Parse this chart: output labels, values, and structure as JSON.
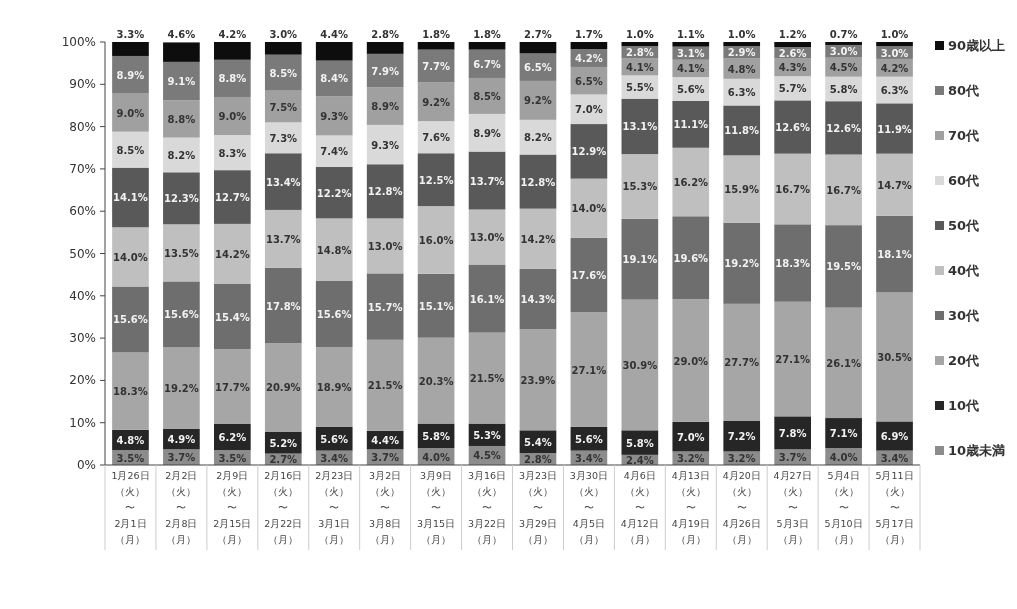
{
  "chart_data": {
    "type": "bar",
    "stacked": true,
    "legend": "right",
    "grid": false,
    "categories": [
      "1月26日（火）〜2月1日（月）",
      "2月2日（火）〜2月8日（月）",
      "2月9日（火）〜2月15日（月）",
      "2月16日（火）〜2月22日（月）",
      "2月23日（火）〜3月1日（月）",
      "3月2日（火）〜3月8日（月）",
      "3月9日（火）〜3月15日（月）",
      "3月16日（火）〜3月22日（月）",
      "3月23日（火）〜3月29日（月）",
      "3月30日（火）〜4月5日（月）",
      "4月6日（火）〜4月12日（月）",
      "4月13日（火）〜4月19日（月）",
      "4月20日（火）〜4月26日（月）",
      "4月27日（火）〜5月3日（月）",
      "5月4日（火）〜5月10日（月）",
      "5月11日（火）〜5月17日（月）"
    ],
    "ylim": [
      0,
      100
    ],
    "yticks": [
      {
        "value": 0,
        "label": "0%"
      },
      {
        "value": 10,
        "label": "10%"
      },
      {
        "value": 20,
        "label": "20%"
      },
      {
        "value": 30,
        "label": "30%"
      },
      {
        "value": 40,
        "label": "40%"
      },
      {
        "value": 50,
        "label": "50%"
      },
      {
        "value": 60,
        "label": "60%"
      },
      {
        "value": 70,
        "label": "70%"
      },
      {
        "value": 80,
        "label": "80%"
      },
      {
        "value": 90,
        "label": "90%"
      },
      {
        "value": 100,
        "label": "100%"
      }
    ],
    "series": [
      {
        "name": "10歳未満",
        "color": "#8c8c8c",
        "values": [
          3.5,
          3.7,
          3.5,
          2.7,
          3.4,
          3.7,
          4.0,
          4.5,
          2.8,
          3.4,
          2.4,
          3.2,
          3.2,
          3.7,
          4.0,
          3.4
        ],
        "value_labels": [
          "3.5%",
          "3.7%",
          "3.5%",
          "2.7%",
          "3.4%",
          "3.7%",
          "4.0%",
          "4.5%",
          "2.8%",
          "3.4%",
          "2.4%",
          "3.2%",
          "3.2%",
          "3.7%",
          "4.0%",
          "3.4%"
        ]
      },
      {
        "name": "10代",
        "color": "#262626",
        "values": [
          4.8,
          4.9,
          6.2,
          5.2,
          5.6,
          4.4,
          5.8,
          5.3,
          5.4,
          5.6,
          5.8,
          7.0,
          7.2,
          7.8,
          7.1,
          6.9
        ],
        "value_labels": [
          "4.8%",
          "4.9%",
          "6.2%",
          "5.2%",
          "5.6%",
          "4.4%",
          "5.8%",
          "5.3%",
          "5.4%",
          "5.6%",
          "5.8%",
          "7.0%",
          "7.2%",
          "7.8%",
          "7.1%",
          "6.9%"
        ]
      },
      {
        "name": "20代",
        "color": "#a6a6a6",
        "values": [
          18.3,
          19.2,
          17.7,
          20.9,
          18.9,
          21.5,
          20.3,
          21.5,
          23.9,
          27.1,
          30.9,
          29.0,
          27.7,
          27.1,
          26.1,
          30.5
        ],
        "value_labels": [
          "18.3%",
          "19.2%",
          "17.7%",
          "20.9%",
          "18.9%",
          "21.5%",
          "20.3%",
          "21.5%",
          "23.9%",
          "27.1%",
          "30.9%",
          "29.0%",
          "27.7%",
          "27.1%",
          "26.1%",
          "30.5%"
        ]
      },
      {
        "name": "30代",
        "color": "#6e6e6e",
        "values": [
          15.6,
          15.6,
          15.4,
          17.8,
          15.6,
          15.7,
          15.1,
          16.1,
          14.3,
          17.6,
          19.1,
          19.6,
          19.2,
          18.3,
          19.5,
          18.1
        ],
        "value_labels": [
          "15.6%",
          "15.6%",
          "15.4%",
          "17.8%",
          "15.6%",
          "15.7%",
          "15.1%",
          "16.1%",
          "14.3%",
          "17.6%",
          "19.1%",
          "19.6%",
          "19.2%",
          "18.3%",
          "19.5%",
          "18.1%"
        ]
      },
      {
        "name": "40代",
        "color": "#bfbfbf",
        "values": [
          14.0,
          13.5,
          14.2,
          13.7,
          14.8,
          13.0,
          16.0,
          13.0,
          14.2,
          14.0,
          15.3,
          16.2,
          15.9,
          16.7,
          16.7,
          14.7
        ],
        "value_labels": [
          "14.0%",
          "13.5%",
          "14.2%",
          "13.7%",
          "14.8%",
          "13.0%",
          "16.0%",
          "13.0%",
          "14.2%",
          "14.0%",
          "15.3%",
          "16.2%",
          "15.9%",
          "16.7%",
          "16.7%",
          "14.7%"
        ]
      },
      {
        "name": "50代",
        "color": "#595959",
        "values": [
          14.1,
          12.3,
          12.7,
          13.4,
          12.2,
          12.8,
          12.5,
          13.7,
          12.8,
          12.9,
          13.1,
          11.1,
          11.8,
          12.6,
          12.6,
          11.9
        ],
        "value_labels": [
          "14.1%",
          "12.3%",
          "12.7%",
          "13.4%",
          "12.2%",
          "12.8%",
          "12.5%",
          "13.7%",
          "12.8%",
          "12.9%",
          "13.1%",
          "11.1%",
          "11.8%",
          "12.6%",
          "12.6%",
          "11.9%"
        ]
      },
      {
        "name": "60代",
        "color": "#d9d9d9",
        "values": [
          8.5,
          8.2,
          8.3,
          7.3,
          7.4,
          9.3,
          7.6,
          8.9,
          8.2,
          7.0,
          5.5,
          5.6,
          6.3,
          5.7,
          5.8,
          6.3
        ],
        "value_labels": [
          "8.5%",
          "8.2%",
          "8.3%",
          "7.3%",
          "7.4%",
          "9.3%",
          "7.6%",
          "8.9%",
          "8.2%",
          "7.0%",
          "5.5%",
          "5.6%",
          "6.3%",
          "5.7%",
          "5.8%",
          "6.3%"
        ]
      },
      {
        "name": "70代",
        "color": "#a0a0a0",
        "values": [
          9.0,
          8.8,
          9.0,
          7.5,
          9.3,
          8.9,
          9.2,
          8.5,
          9.2,
          6.5,
          4.1,
          4.1,
          4.8,
          4.3,
          4.5,
          4.2
        ],
        "value_labels": [
          "9.0%",
          "8.8%",
          "9.0%",
          "7.5%",
          "9.3%",
          "8.9%",
          "9.2%",
          "8.5%",
          "9.2%",
          "6.5%",
          "4.1%",
          "4.1%",
          "4.8%",
          "4.3%",
          "4.5%",
          "4.2%"
        ]
      },
      {
        "name": "80代",
        "color": "#7a7a7a",
        "values": [
          8.9,
          9.1,
          8.8,
          8.5,
          8.4,
          7.9,
          7.7,
          6.7,
          6.5,
          4.2,
          2.8,
          3.1,
          2.9,
          2.6,
          3.0,
          3.0
        ],
        "value_labels": [
          "8.9%",
          "9.1%",
          "8.8%",
          "8.5%",
          "8.4%",
          "7.9%",
          "7.7%",
          "6.7%",
          "6.5%",
          "4.2%",
          "2.8%",
          "3.1%",
          "2.9%",
          "2.6%",
          "3.0%",
          "3.0%"
        ]
      },
      {
        "name": "90歳以上",
        "color": "#0d0d0d",
        "values": [
          3.3,
          4.6,
          4.2,
          3.0,
          4.4,
          2.8,
          1.8,
          1.8,
          2.7,
          1.7,
          1.0,
          1.1,
          1.0,
          1.2,
          0.7,
          1.0
        ],
        "value_labels": [
          "3.3%",
          "4.6%",
          "4.2%",
          "3.0%",
          "4.4%",
          "2.8%",
          "1.8%",
          "1.8%",
          "2.7%",
          "1.7%",
          "1.0%",
          "1.1%",
          "1.0%",
          "1.2%",
          "0.7%",
          "1.0%"
        ]
      }
    ]
  }
}
